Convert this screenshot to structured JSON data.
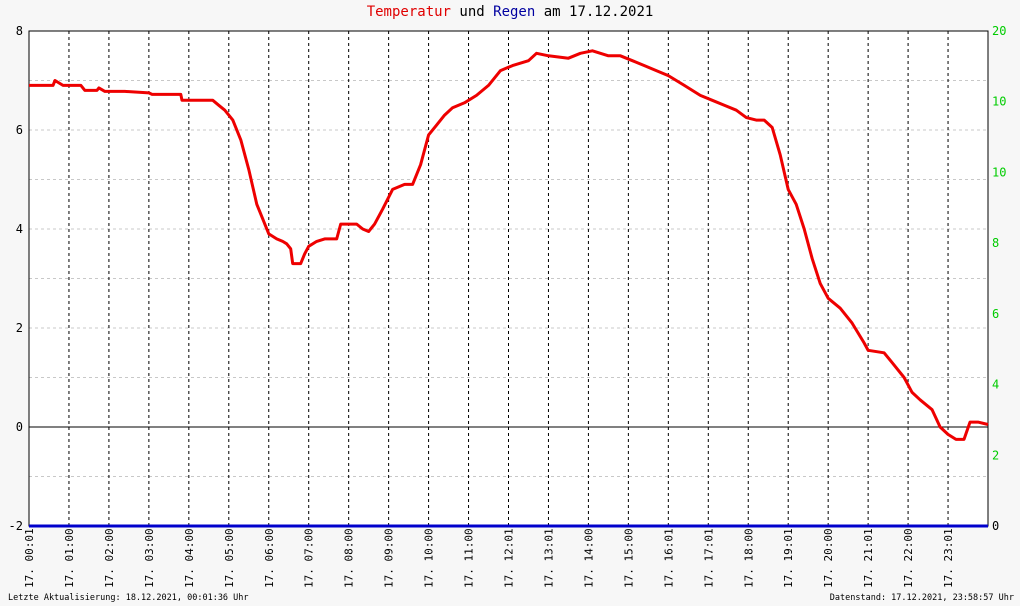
{
  "title": {
    "series1": "Temperatur",
    "connector": " und ",
    "series2": "Regen",
    "suffix": " am 17.12.2021"
  },
  "footer": {
    "left": "Letzte Aktualisierung: 18.12.2021, 00:01:36 Uhr",
    "right": "Datenstand: 17.12.2021, 23:58:57 Uhr"
  },
  "colors": {
    "temperature": "#ee0000",
    "rain": "#0000cc",
    "right_axis_labels": "#00cc00",
    "grid_vertical": "#000000",
    "grid_horizontal": "#c8c8c8",
    "zero_line": "#000000"
  },
  "chart_data": {
    "type": "line",
    "title": "Temperatur und Regen am 17.12.2021",
    "grid": true,
    "ylim": [
      -2,
      8
    ],
    "y_ticks": [
      "-2",
      "0",
      "2",
      "4",
      "6",
      "8"
    ],
    "y2lim": [
      0,
      20
    ],
    "y2_ticks": [
      "0",
      "2",
      "4",
      "6",
      "8",
      "10",
      "10",
      "20"
    ],
    "x_range_hours": [
      0,
      24
    ],
    "x_tick_labels": [
      "17. 00:01",
      "17. 01:00",
      "17. 02:00",
      "17. 03:00",
      "17. 04:00",
      "17. 05:00",
      "17. 06:00",
      "17. 07:00",
      "17. 08:00",
      "17. 09:00",
      "17. 10:00",
      "17. 11:00",
      "17. 12:01",
      "17. 13:01",
      "17. 14:00",
      "17. 15:00",
      "17. 16:01",
      "17. 17:01",
      "17. 18:00",
      "17. 19:01",
      "17. 20:00",
      "17. 21:01",
      "17. 22:00",
      "17. 23:01"
    ],
    "series": [
      {
        "name": "Temperatur",
        "x_hours": [
          0,
          0.6,
          0.65,
          0.85,
          1.3,
          1.4,
          1.7,
          1.75,
          1.9,
          2.4,
          3.0,
          3.08,
          3.8,
          3.83,
          4.6,
          4.75,
          4.9,
          5.1,
          5.3,
          5.5,
          5.7,
          5.85,
          6.0,
          6.2,
          6.35,
          6.45,
          6.55,
          6.6,
          6.65,
          6.8,
          6.9,
          7.0,
          7.2,
          7.4,
          7.7,
          7.8,
          8.2,
          8.35,
          8.5,
          8.65,
          8.85,
          9.1,
          9.4,
          9.6,
          9.8,
          10.0,
          10.2,
          10.4,
          10.6,
          10.9,
          11.2,
          11.5,
          11.8,
          12.1,
          12.5,
          12.7,
          13.0,
          13.5,
          13.8,
          14.1,
          14.5,
          14.8,
          15.1,
          15.4,
          15.7,
          16.0,
          16.4,
          16.8,
          17.1,
          17.4,
          17.7,
          17.95,
          18.2,
          18.4,
          18.6,
          18.8,
          19.0,
          19.2,
          19.4,
          19.6,
          19.8,
          20.0,
          20.3,
          20.6,
          20.9,
          21.0,
          21.4,
          21.6,
          21.9,
          22.1,
          22.3,
          22.6,
          22.8,
          23.0,
          23.2,
          23.4,
          23.55,
          23.75,
          24.0
        ],
        "values": [
          6.9,
          6.9,
          7.0,
          6.9,
          6.9,
          6.8,
          6.8,
          6.85,
          6.78,
          6.78,
          6.75,
          6.72,
          6.72,
          6.6,
          6.6,
          6.5,
          6.4,
          6.2,
          5.8,
          5.2,
          4.5,
          4.2,
          3.9,
          3.8,
          3.75,
          3.7,
          3.6,
          3.3,
          3.3,
          3.3,
          3.5,
          3.65,
          3.75,
          3.8,
          3.8,
          4.1,
          4.1,
          4.0,
          3.95,
          4.1,
          4.4,
          4.8,
          4.9,
          4.9,
          5.3,
          5.9,
          6.1,
          6.3,
          6.45,
          6.55,
          6.7,
          6.9,
          7.2,
          7.3,
          7.4,
          7.55,
          7.5,
          7.45,
          7.55,
          7.6,
          7.5,
          7.5,
          7.4,
          7.3,
          7.2,
          7.1,
          6.9,
          6.7,
          6.6,
          6.5,
          6.4,
          6.25,
          6.2,
          6.2,
          6.05,
          5.5,
          4.8,
          4.5,
          4.0,
          3.4,
          2.9,
          2.6,
          2.4,
          2.1,
          1.7,
          1.55,
          1.5,
          1.3,
          1.0,
          0.7,
          0.55,
          0.35,
          0.0,
          -0.15,
          -0.25,
          -0.25,
          0.1,
          0.1,
          0.05
        ]
      },
      {
        "name": "Regen",
        "axis": "right",
        "x_hours": [
          0,
          24
        ],
        "values": [
          0,
          0
        ]
      }
    ]
  }
}
